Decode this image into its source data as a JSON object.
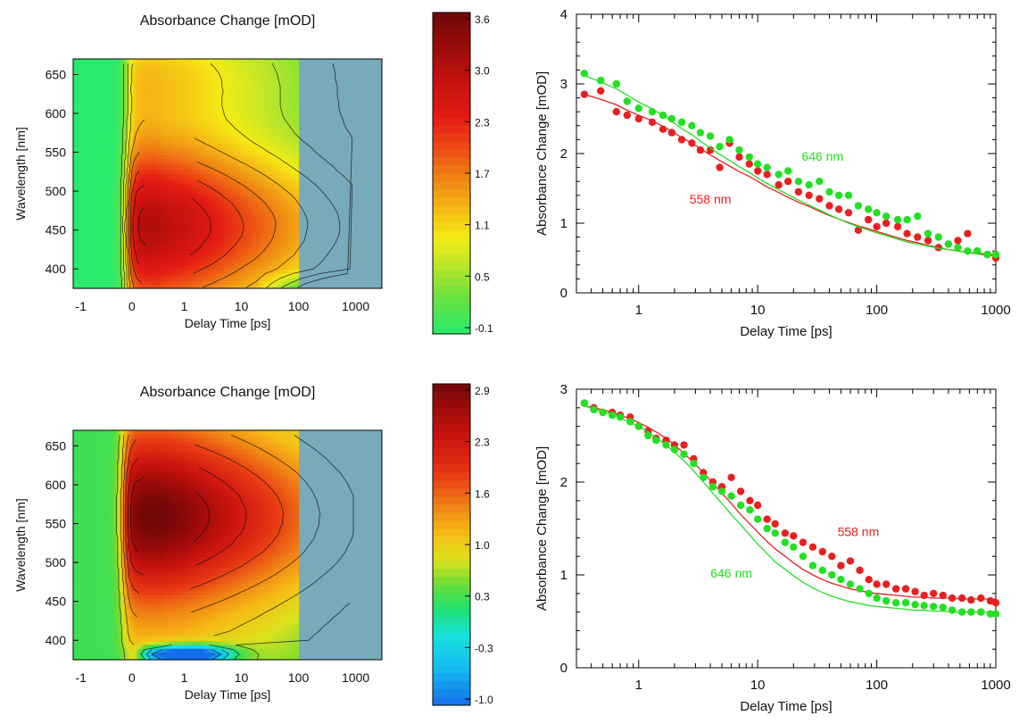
{
  "figure": {
    "panels": [
      {
        "kind": "heatmap",
        "title": "Absorbance Change [mOD]",
        "xlabel": "Delay Time [ps]",
        "ylabel": "Wavelength [nm]",
        "xticks": [
          "-1",
          "0",
          "1",
          "10",
          "100",
          "1000"
        ],
        "yticks": [
          "400",
          "450",
          "500",
          "550",
          "600",
          "650"
        ],
        "colorbar_ticks": [
          "3.6",
          "3.0",
          "2.3",
          "1.7",
          "1.1",
          "0.5",
          "-0.1"
        ],
        "colorbar_range": [
          -0.1,
          3.6
        ],
        "peak": {
          "delay_ps": 0.5,
          "wavelength_nm": 455,
          "value": 3.6
        },
        "dip_present": false
      },
      {
        "kind": "heatmap",
        "title": "Absorbance Change [mOD]",
        "xlabel": "Delay Time [ps]",
        "ylabel": "Wavelength [nm]",
        "xticks": [
          "-1",
          "0",
          "1",
          "10",
          "100",
          "1000"
        ],
        "yticks": [
          "400",
          "450",
          "500",
          "550",
          "600",
          "650"
        ],
        "colorbar_ticks": [
          "2.9",
          "2.3",
          "1.6",
          "1.0",
          "0.3",
          "-0.3",
          "-1.0"
        ],
        "colorbar_range": [
          -1.0,
          2.9
        ],
        "peak": {
          "delay_ps": 0.5,
          "wavelength_nm": 560,
          "value": 2.9
        },
        "dip_present": true
      }
    ]
  },
  "chart_data": [
    {
      "type": "heatmap",
      "title": "Absorbance Change [mOD]",
      "xlabel": "Delay Time [ps]",
      "ylabel": "Wavelength [nm]",
      "xscale": "linear below 0, log above",
      "xlim": [
        -1,
        1000
      ],
      "ylim": [
        375,
        670
      ],
      "zlim": [
        -0.1,
        3.6
      ]
    },
    {
      "type": "scatter",
      "xlabel": "Delay Time [ps]",
      "ylabel": "Absorbance Change [mOD]",
      "xscale": "log",
      "xlim": [
        0.3,
        1000
      ],
      "ylim": [
        0,
        4
      ],
      "xticks": [
        "1",
        "10",
        "100",
        "1000"
      ],
      "yticks": [
        "0",
        "1",
        "2",
        "3",
        "4"
      ],
      "series": [
        {
          "name": "558 nm",
          "color": "#e82020",
          "x": [
            0.35,
            0.48,
            0.65,
            0.8,
            1.0,
            1.3,
            1.6,
            1.9,
            2.3,
            2.8,
            3.3,
            4.0,
            4.8,
            5.8,
            7.0,
            8.5,
            10,
            12,
            15,
            18,
            22,
            27,
            33,
            40,
            48,
            58,
            70,
            85,
            100,
            120,
            150,
            180,
            220,
            270,
            330,
            400,
            480,
            580,
            700,
            850,
            1000
          ],
          "y": [
            2.85,
            2.9,
            2.6,
            2.55,
            2.5,
            2.45,
            2.35,
            2.3,
            2.2,
            2.15,
            2.05,
            2.05,
            1.8,
            2.15,
            1.95,
            1.85,
            1.75,
            1.7,
            1.55,
            1.6,
            1.45,
            1.4,
            1.35,
            1.25,
            1.2,
            1.15,
            0.9,
            1.05,
            0.95,
            1.0,
            0.95,
            0.85,
            0.8,
            0.75,
            0.65,
            0.7,
            0.75,
            0.85,
            0.6,
            0.55,
            0.5
          ],
          "fit_y": [
            2.85,
            2.78,
            2.7,
            2.62,
            2.55,
            2.47,
            2.39,
            2.32,
            2.23,
            2.15,
            2.07,
            1.98,
            1.9,
            1.82,
            1.74,
            1.67,
            1.6,
            1.52,
            1.44,
            1.37,
            1.3,
            1.24,
            1.17,
            1.11,
            1.06,
            1.01,
            0.96,
            0.92,
            0.88,
            0.84,
            0.79,
            0.75,
            0.72,
            0.68,
            0.65,
            0.62,
            0.6,
            0.58,
            0.56,
            0.54,
            0.53
          ]
        },
        {
          "name": "646 nm",
          "color": "#22e022",
          "x": [
            0.35,
            0.48,
            0.65,
            0.8,
            1.0,
            1.3,
            1.6,
            1.9,
            2.3,
            2.8,
            3.3,
            4.0,
            4.8,
            5.8,
            7.0,
            8.5,
            10,
            12,
            15,
            18,
            22,
            27,
            33,
            40,
            48,
            58,
            70,
            85,
            100,
            120,
            150,
            180,
            220,
            270,
            330,
            400,
            480,
            580,
            700,
            850,
            1000
          ],
          "y": [
            3.15,
            3.05,
            3.0,
            2.75,
            2.65,
            2.6,
            2.55,
            2.5,
            2.45,
            2.4,
            2.3,
            2.25,
            2.1,
            2.2,
            2.05,
            1.95,
            1.85,
            1.8,
            1.7,
            1.75,
            1.6,
            1.55,
            1.6,
            1.45,
            1.4,
            1.4,
            1.25,
            1.2,
            1.15,
            1.1,
            1.05,
            1.05,
            1.1,
            0.85,
            0.8,
            0.7,
            0.65,
            0.6,
            0.6,
            0.55,
            0.55
          ],
          "fit_y": [
            3.12,
            3.03,
            2.93,
            2.84,
            2.74,
            2.64,
            2.55,
            2.46,
            2.36,
            2.27,
            2.18,
            2.08,
            1.99,
            1.9,
            1.81,
            1.73,
            1.65,
            1.57,
            1.48,
            1.41,
            1.33,
            1.26,
            1.19,
            1.12,
            1.06,
            1.0,
            0.95,
            0.9,
            0.86,
            0.82,
            0.77,
            0.73,
            0.7,
            0.67,
            0.64,
            0.62,
            0.6,
            0.58,
            0.57,
            0.56,
            0.55
          ]
        }
      ],
      "annotations": [
        {
          "text": "646 nm",
          "color": "#22e022",
          "x": 35,
          "y": 1.9
        },
        {
          "text": "558 nm",
          "color": "#e82020",
          "x": 4,
          "y": 1.28
        }
      ]
    },
    {
      "type": "heatmap",
      "title": "Absorbance Change [mOD]",
      "xlabel": "Delay Time [ps]",
      "ylabel": "Wavelength [nm]",
      "xscale": "linear below 0, log above",
      "xlim": [
        -1,
        1000
      ],
      "ylim": [
        375,
        670
      ],
      "zlim": [
        -1.0,
        2.9
      ]
    },
    {
      "type": "scatter",
      "xlabel": "Delay Time [ps]",
      "ylabel": "Absorbance Change [mOD]",
      "xscale": "log",
      "xlim": [
        0.3,
        1000
      ],
      "ylim": [
        0,
        3
      ],
      "xticks": [
        "1",
        "10",
        "100",
        "1000"
      ],
      "yticks": [
        "0",
        "1",
        "2",
        "3"
      ],
      "series": [
        {
          "name": "558 nm",
          "color": "#e82020",
          "x": [
            0.35,
            0.42,
            0.5,
            0.6,
            0.7,
            0.85,
            1.0,
            1.2,
            1.4,
            1.7,
            2.0,
            2.4,
            2.9,
            3.5,
            4.2,
            5.0,
            6.0,
            7.2,
            8.6,
            10,
            12,
            14,
            17,
            20,
            24,
            29,
            35,
            42,
            50,
            60,
            72,
            86,
            100,
            120,
            145,
            175,
            210,
            250,
            300,
            360,
            430,
            520,
            620,
            750,
            900,
            1000
          ],
          "y": [
            2.85,
            2.8,
            2.75,
            2.75,
            2.72,
            2.7,
            2.6,
            2.55,
            2.47,
            2.45,
            2.4,
            2.4,
            2.25,
            2.1,
            2.0,
            1.95,
            2.05,
            1.9,
            1.8,
            1.75,
            1.6,
            1.55,
            1.45,
            1.42,
            1.35,
            1.3,
            1.25,
            1.2,
            1.1,
            1.15,
            1.05,
            0.95,
            0.9,
            0.9,
            0.85,
            0.85,
            0.82,
            0.78,
            0.8,
            0.78,
            0.75,
            0.75,
            0.73,
            0.75,
            0.72,
            0.7
          ],
          "fit_y": [
            2.82,
            2.8,
            2.78,
            2.75,
            2.72,
            2.68,
            2.64,
            2.59,
            2.54,
            2.47,
            2.4,
            2.31,
            2.21,
            2.1,
            1.99,
            1.88,
            1.77,
            1.65,
            1.55,
            1.46,
            1.36,
            1.28,
            1.2,
            1.13,
            1.06,
            1.0,
            0.95,
            0.91,
            0.88,
            0.85,
            0.83,
            0.81,
            0.8,
            0.79,
            0.78,
            0.77,
            0.76,
            0.76,
            0.75,
            0.75,
            0.75,
            0.74,
            0.74,
            0.74,
            0.74,
            0.74
          ]
        },
        {
          "name": "646 nm",
          "color": "#22e022",
          "x": [
            0.35,
            0.42,
            0.5,
            0.6,
            0.7,
            0.85,
            1.0,
            1.2,
            1.4,
            1.7,
            2.0,
            2.4,
            2.9,
            3.5,
            4.2,
            5.0,
            6.0,
            7.2,
            8.6,
            10,
            12,
            14,
            17,
            20,
            24,
            29,
            35,
            42,
            50,
            60,
            72,
            86,
            100,
            120,
            145,
            175,
            210,
            250,
            300,
            360,
            430,
            520,
            620,
            750,
            900,
            1000
          ],
          "y": [
            2.85,
            2.78,
            2.75,
            2.72,
            2.7,
            2.65,
            2.6,
            2.5,
            2.45,
            2.4,
            2.35,
            2.3,
            2.2,
            2.05,
            1.95,
            1.9,
            1.85,
            1.75,
            1.7,
            1.6,
            1.5,
            1.45,
            1.35,
            1.3,
            1.2,
            1.1,
            1.05,
            1.0,
            0.95,
            0.9,
            0.85,
            0.8,
            0.75,
            0.72,
            0.7,
            0.7,
            0.68,
            0.67,
            0.66,
            0.65,
            0.62,
            0.6,
            0.6,
            0.6,
            0.58,
            0.58
          ],
          "fit_y": [
            2.82,
            2.79,
            2.76,
            2.73,
            2.69,
            2.64,
            2.6,
            2.54,
            2.48,
            2.4,
            2.32,
            2.23,
            2.12,
            2.0,
            1.88,
            1.77,
            1.65,
            1.54,
            1.43,
            1.33,
            1.23,
            1.14,
            1.06,
            0.99,
            0.92,
            0.86,
            0.81,
            0.77,
            0.74,
            0.71,
            0.69,
            0.67,
            0.66,
            0.65,
            0.64,
            0.63,
            0.62,
            0.62,
            0.61,
            0.61,
            0.6,
            0.6,
            0.6,
            0.6,
            0.6,
            0.6
          ]
        }
      ],
      "annotations": [
        {
          "text": "558 nm",
          "color": "#e82020",
          "x": 70,
          "y": 1.42
        },
        {
          "text": "646 nm",
          "color": "#22e022",
          "x": 6,
          "y": 0.97
        }
      ]
    }
  ]
}
